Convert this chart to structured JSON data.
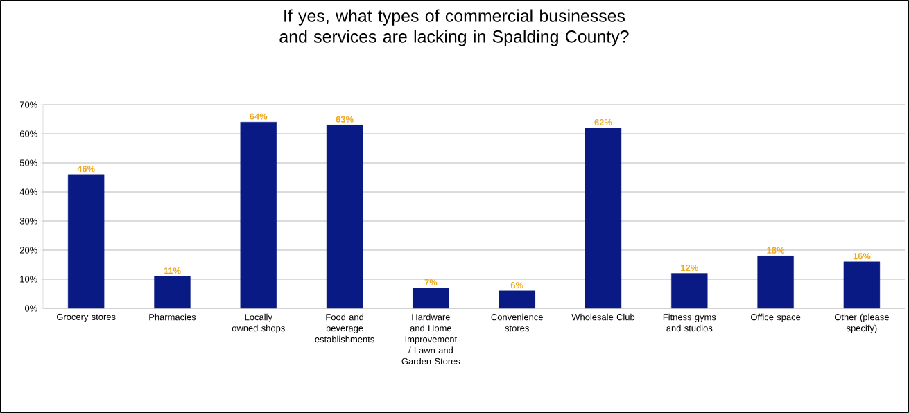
{
  "chart_data": {
    "type": "bar",
    "title": "If yes, what types of commercial businesses and services are lacking in Spalding County?",
    "categories": [
      "Grocery stores",
      "Pharmacies",
      "Locally owned shops",
      "Food and beverage establishments",
      "Hardware and Home Improvement / Lawn and Garden Stores",
      "Convenience stores",
      "Wholesale Club",
      "Fitness gyms and studios",
      "Office space",
      "Other (please specify)"
    ],
    "values": [
      46,
      11,
      64,
      63,
      7,
      6,
      62,
      12,
      18,
      16
    ],
    "value_labels": [
      "46%",
      "11%",
      "64%",
      "63%",
      "7%",
      "6%",
      "62%",
      "12%",
      "18%",
      "16%"
    ],
    "color": "#0a1a84",
    "ylim": [
      0,
      70
    ],
    "yticks": [
      {
        "value": 0,
        "label": "0%"
      },
      {
        "value": 10,
        "label": "10%"
      },
      {
        "value": 20,
        "label": "20%"
      },
      {
        "value": 30,
        "label": "30%"
      },
      {
        "value": 40,
        "label": "40%"
      },
      {
        "value": 50,
        "label": "50%"
      },
      {
        "value": 60,
        "label": "60%"
      },
      {
        "value": 70,
        "label": "70%"
      }
    ],
    "grid": "y"
  }
}
